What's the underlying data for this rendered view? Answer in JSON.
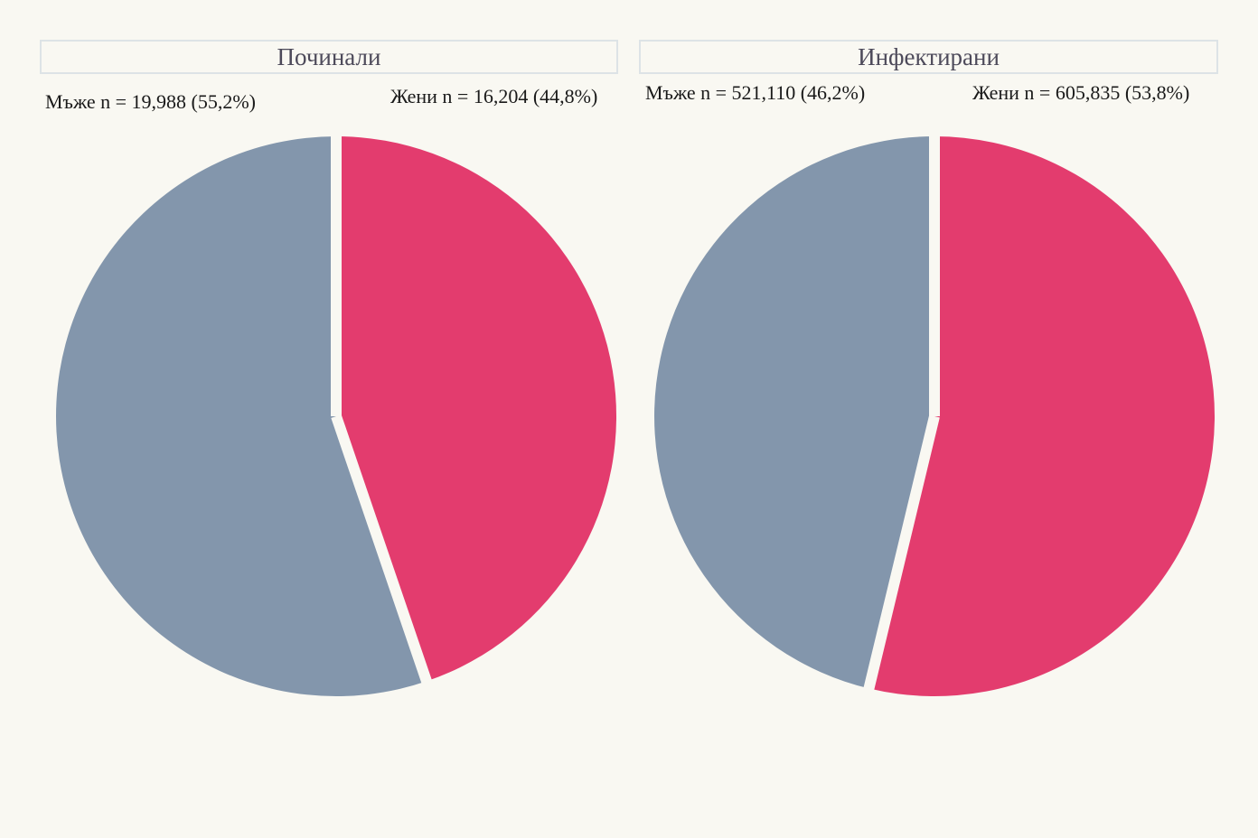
{
  "colors": {
    "men": "#8396ac",
    "women": "#e33c6e",
    "background": "#f9f8f2",
    "separator": "#f9f8f2"
  },
  "chart_data": [
    {
      "type": "pie",
      "title": "Починали",
      "slices": [
        {
          "label": "Жени n = 16,204 (44,8%)",
          "value": 16204,
          "percent": 44.8,
          "color": "#e33c6e"
        },
        {
          "label": "Мъже n = 19,988 (55,2%)",
          "value": 19988,
          "percent": 55.2,
          "color": "#8396ac"
        }
      ]
    },
    {
      "type": "pie",
      "title": "Инфектирани",
      "slices": [
        {
          "label": "Жени n = 605,835 (53,8%)",
          "value": 605835,
          "percent": 53.8,
          "color": "#e33c6e"
        },
        {
          "label": "Мъже n = 521,110 (46,2%)",
          "value": 521110,
          "percent": 46.2,
          "color": "#8396ac"
        }
      ]
    }
  ]
}
